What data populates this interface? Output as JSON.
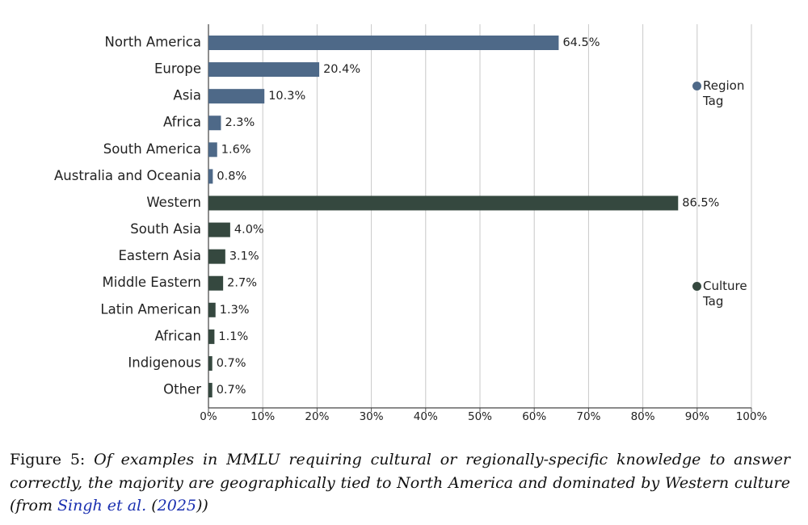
{
  "chart_data": {
    "type": "hbar",
    "groups": [
      {
        "name": "Region Tag",
        "color": "#4e6988",
        "categories": [
          "North America",
          "Europe",
          "Asia",
          "Africa",
          "South America",
          "Australia and Oceania"
        ],
        "values": [
          64.5,
          20.4,
          10.3,
          2.3,
          1.6,
          0.8
        ],
        "value_labels": [
          "64.5%",
          "20.4%",
          "10.3%",
          "2.3%",
          "1.6%",
          "0.8%"
        ]
      },
      {
        "name": "Culture Tag",
        "color": "#35483f",
        "categories": [
          "Western",
          "South Asia",
          "Eastern Asia",
          "Middle Eastern",
          "Latin American",
          "African",
          "Indigenous",
          "Other"
        ],
        "values": [
          86.5,
          4.0,
          3.1,
          2.7,
          1.3,
          1.1,
          0.7,
          0.7
        ],
        "value_labels": [
          "86.5%",
          "4.0%",
          "3.1%",
          "2.7%",
          "1.3%",
          "1.1%",
          "0.7%",
          "0.7%"
        ]
      }
    ],
    "xlim": [
      0,
      100
    ],
    "xticks": [
      {
        "value": 0,
        "label": "0%"
      },
      {
        "value": 10,
        "label": "10%"
      },
      {
        "value": 20,
        "label": "20%"
      },
      {
        "value": 30,
        "label": "30%"
      },
      {
        "value": 40,
        "label": "40%"
      },
      {
        "value": 50,
        "label": "50%"
      },
      {
        "value": 60,
        "label": "60%"
      },
      {
        "value": 70,
        "label": "70%"
      },
      {
        "value": 80,
        "label": "80%"
      },
      {
        "value": 90,
        "label": "90%"
      },
      {
        "value": 100,
        "label": "100%"
      }
    ],
    "grid": true
  },
  "caption": {
    "label": "Figure 5:",
    "text": "Of examples in MMLU requiring cultural or regionally-specific knowledge to answer correctly, the majority are geographically tied to North America and dominated by Western culture",
    "source_prefix": "(from",
    "source_author": "Singh et al.",
    "source_open": "(",
    "source_year": "2025",
    "source_close": "))"
  }
}
